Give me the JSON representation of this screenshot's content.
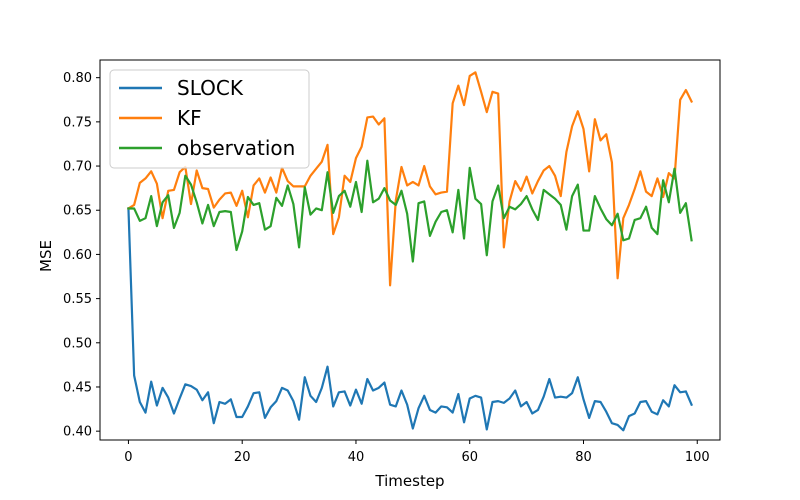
{
  "chart_data": {
    "type": "line",
    "title": "",
    "xlabel": "Timestep",
    "ylabel": "MSE",
    "xlim": [
      -5,
      104
    ],
    "ylim": [
      0.39,
      0.82
    ],
    "xticks": [
      0,
      20,
      40,
      60,
      80,
      100
    ],
    "yticks": [
      0.4,
      0.45,
      0.5,
      0.55,
      0.6,
      0.65,
      0.7,
      0.75,
      0.8
    ],
    "grid": false,
    "legend_position": "upper-left",
    "x": [
      0,
      1,
      2,
      3,
      4,
      5,
      6,
      7,
      8,
      9,
      10,
      11,
      12,
      13,
      14,
      15,
      16,
      17,
      18,
      19,
      20,
      21,
      22,
      23,
      24,
      25,
      26,
      27,
      28,
      29,
      30,
      31,
      32,
      33,
      34,
      35,
      36,
      37,
      38,
      39,
      40,
      41,
      42,
      43,
      44,
      45,
      46,
      47,
      48,
      49,
      50,
      51,
      52,
      53,
      54,
      55,
      56,
      57,
      58,
      59,
      60,
      61,
      62,
      63,
      64,
      65,
      66,
      67,
      68,
      69,
      70,
      71,
      72,
      73,
      74,
      75,
      76,
      77,
      78,
      79,
      80,
      81,
      82,
      83,
      84,
      85,
      86,
      87,
      88,
      89,
      90,
      91,
      92,
      93,
      94,
      95,
      96,
      97,
      98,
      99
    ],
    "series": [
      {
        "name": "SLOCK",
        "color": "#1f77b4",
        "values": [
          0.652,
          0.463,
          0.433,
          0.421,
          0.456,
          0.429,
          0.449,
          0.438,
          0.42,
          0.437,
          0.453,
          0.451,
          0.447,
          0.435,
          0.444,
          0.409,
          0.433,
          0.431,
          0.436,
          0.416,
          0.416,
          0.428,
          0.443,
          0.444,
          0.415,
          0.427,
          0.434,
          0.449,
          0.446,
          0.434,
          0.413,
          0.461,
          0.44,
          0.433,
          0.449,
          0.473,
          0.428,
          0.444,
          0.445,
          0.429,
          0.447,
          0.431,
          0.459,
          0.446,
          0.449,
          0.455,
          0.43,
          0.428,
          0.446,
          0.43,
          0.403,
          0.426,
          0.44,
          0.424,
          0.421,
          0.428,
          0.427,
          0.421,
          0.442,
          0.41,
          0.437,
          0.44,
          0.438,
          0.402,
          0.433,
          0.434,
          0.432,
          0.437,
          0.446,
          0.428,
          0.433,
          0.42,
          0.424,
          0.439,
          0.459,
          0.438,
          0.439,
          0.438,
          0.443,
          0.461,
          0.436,
          0.415,
          0.434,
          0.433,
          0.422,
          0.409,
          0.407,
          0.401,
          0.417,
          0.42,
          0.433,
          0.434,
          0.422,
          0.419,
          0.435,
          0.428,
          0.452,
          0.444,
          0.445,
          0.43
        ]
      },
      {
        "name": "KF",
        "color": "#ff7f0e",
        "values": [
          0.652,
          0.656,
          0.681,
          0.686,
          0.694,
          0.68,
          0.641,
          0.672,
          0.673,
          0.693,
          0.699,
          0.657,
          0.695,
          0.675,
          0.674,
          0.653,
          0.662,
          0.669,
          0.67,
          0.655,
          0.672,
          0.642,
          0.678,
          0.686,
          0.67,
          0.687,
          0.67,
          0.698,
          0.683,
          0.677,
          0.677,
          0.677,
          0.689,
          0.697,
          0.705,
          0.724,
          0.623,
          0.642,
          0.689,
          0.682,
          0.709,
          0.722,
          0.755,
          0.756,
          0.747,
          0.754,
          0.565,
          0.661,
          0.699,
          0.678,
          0.682,
          0.678,
          0.7,
          0.677,
          0.668,
          0.67,
          0.671,
          0.771,
          0.791,
          0.769,
          0.802,
          0.806,
          0.784,
          0.761,
          0.784,
          0.782,
          0.608,
          0.66,
          0.683,
          0.672,
          0.688,
          0.669,
          0.683,
          0.695,
          0.7,
          0.689,
          0.666,
          0.716,
          0.745,
          0.762,
          0.742,
          0.694,
          0.753,
          0.729,
          0.736,
          0.704,
          0.573,
          0.641,
          0.656,
          0.674,
          0.694,
          0.671,
          0.666,
          0.686,
          0.665,
          0.692,
          0.686,
          0.775,
          0.786,
          0.773
        ]
      },
      {
        "name": "observation",
        "color": "#2ca02c",
        "values": [
          0.652,
          0.652,
          0.638,
          0.641,
          0.666,
          0.632,
          0.659,
          0.667,
          0.63,
          0.647,
          0.689,
          0.679,
          0.659,
          0.635,
          0.656,
          0.632,
          0.648,
          0.649,
          0.648,
          0.605,
          0.626,
          0.665,
          0.656,
          0.658,
          0.628,
          0.632,
          0.664,
          0.655,
          0.678,
          0.657,
          0.608,
          0.676,
          0.645,
          0.652,
          0.65,
          0.693,
          0.647,
          0.666,
          0.672,
          0.654,
          0.682,
          0.648,
          0.706,
          0.659,
          0.663,
          0.675,
          0.661,
          0.656,
          0.672,
          0.646,
          0.592,
          0.658,
          0.66,
          0.621,
          0.637,
          0.648,
          0.65,
          0.625,
          0.673,
          0.618,
          0.698,
          0.663,
          0.657,
          0.599,
          0.66,
          0.678,
          0.641,
          0.654,
          0.651,
          0.657,
          0.666,
          0.651,
          0.639,
          0.673,
          0.668,
          0.663,
          0.656,
          0.628,
          0.666,
          0.679,
          0.627,
          0.627,
          0.666,
          0.652,
          0.64,
          0.633,
          0.646,
          0.616,
          0.618,
          0.639,
          0.641,
          0.654,
          0.63,
          0.623,
          0.684,
          0.659,
          0.697,
          0.647,
          0.658,
          0.616
        ]
      }
    ]
  }
}
